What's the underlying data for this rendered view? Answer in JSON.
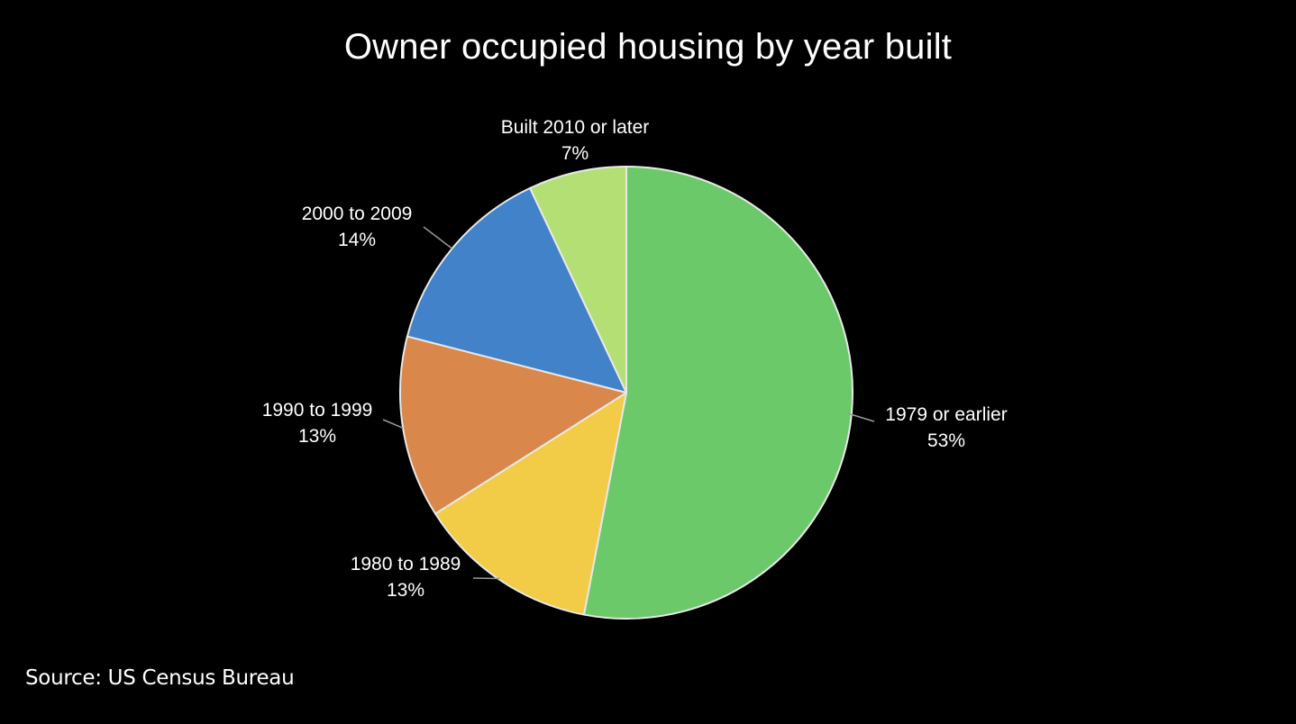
{
  "chart_data": {
    "type": "pie",
    "title": "Owner occupied housing by year built",
    "slices": [
      {
        "label": "1979 or earlier",
        "value": 53,
        "value_label": "53%",
        "color": "#6cc96a"
      },
      {
        "label": "1980 to 1989",
        "value": 13,
        "value_label": "13%",
        "color": "#f2cb47"
      },
      {
        "label": "1990 to 1999",
        "value": 13,
        "value_label": "13%",
        "color": "#d9874a"
      },
      {
        "label": "2000 to 2009",
        "value": 14,
        "value_label": "14%",
        "color": "#4282c8"
      },
      {
        "label": "Built 2010 or later",
        "value": 7,
        "value_label": "7%",
        "color": "#b4df74"
      }
    ],
    "start_angle": "12 o'clock",
    "direction": "clockwise",
    "slice_border_color": "#e8e8e8",
    "background_color": "#000000"
  },
  "source": "Source: US Census Bureau"
}
